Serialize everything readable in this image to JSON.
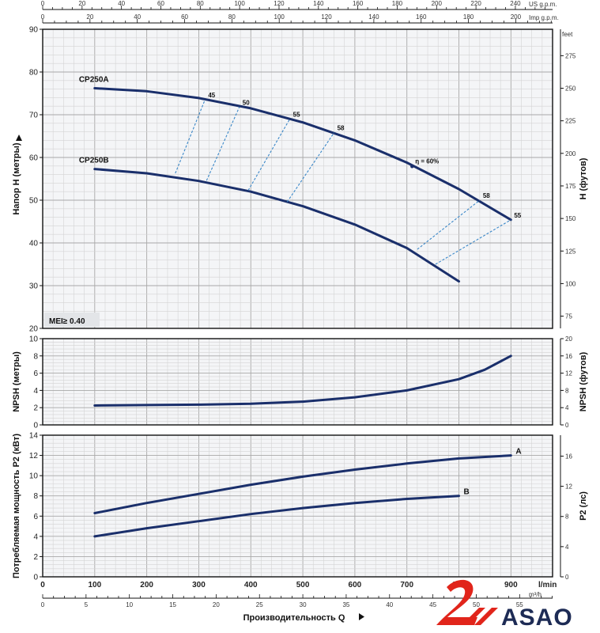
{
  "logo": {
    "text": "ASAO",
    "mark_color": "#e1251b",
    "text_color": "#1d2b55"
  },
  "colors": {
    "curve": "#1a2f6b",
    "efficiency": "#3a87c8",
    "grid_minor": "#d4d4d4",
    "grid_major": "#a8a8a8",
    "panel_bg": "#f4f5f7",
    "axis": "#111111"
  },
  "chart_data": {
    "type": "line",
    "x_axis": {
      "label": "Производительность Q",
      "unit": "l/min",
      "ticks": [
        0,
        100,
        200,
        300,
        400,
        500,
        600,
        700,
        800,
        900
      ],
      "xlim": [
        0,
        980
      ]
    },
    "secondary_x_axes": [
      {
        "unit": "US g.p.m.",
        "position": "top",
        "ticks": [
          0,
          20,
          40,
          60,
          80,
          100,
          120,
          140,
          160,
          180,
          200,
          220,
          240
        ]
      },
      {
        "unit": "Imp g.p.m.",
        "position": "top",
        "ticks": [
          0,
          20,
          40,
          60,
          80,
          100,
          120,
          140,
          160,
          180,
          200
        ]
      },
      {
        "unit": "m³/h",
        "position": "bottom",
        "ticks": [
          0,
          5,
          10,
          15,
          20,
          25,
          30,
          35,
          40,
          45,
          50,
          55
        ]
      }
    ],
    "panels": [
      {
        "id": "head",
        "ylabel": "Напор H (метры)",
        "y2label": "H (футов)",
        "y2unit": "feet",
        "ylim": [
          20,
          90
        ],
        "yticks": [
          20,
          30,
          40,
          50,
          60,
          70,
          80,
          90
        ],
        "y2ticks": [
          75,
          100,
          125,
          150,
          175,
          200,
          225,
          250,
          275
        ],
        "annotation": "MEI≥ 0.40",
        "series": [
          {
            "name": "CP250A",
            "x": [
              100,
              200,
              300,
              400,
              500,
              600,
              700,
              800,
              900
            ],
            "values": [
              76.2,
              75.5,
              73.9,
              71.5,
              68.2,
              64.0,
              58.8,
              52.6,
              45.4
            ]
          },
          {
            "name": "CP250B",
            "x": [
              100,
              200,
              300,
              400,
              500,
              600,
              700,
              800
            ],
            "values": [
              57.3,
              56.3,
              54.5,
              52.0,
              48.6,
              44.3,
              38.8,
              31.0
            ]
          }
        ],
        "efficiency": {
          "label_prefix": "η = ",
          "lines": [
            {
              "label": "45",
              "points": [
                [
                  255,
                  56.3
                ],
                [
                  312,
                  73.5
                ]
              ]
            },
            {
              "label": "50",
              "points": [
                [
                  315,
                  54.6
                ],
                [
                  378,
                  71.8
                ]
              ]
            },
            {
              "label": "55",
              "points": [
                [
                  395,
                  52.3
                ],
                [
                  475,
                  69.0
                ]
              ]
            },
            {
              "label": "58",
              "points": [
                [
                  470,
                  49.6
                ],
                [
                  560,
                  65.8
                ]
              ]
            },
            {
              "label": "60%",
              "points": [
                [
                  710,
                  57.9
                ]
              ]
            },
            {
              "label": "58",
              "points": [
                [
                  720,
                  38.5
                ],
                [
                  840,
                  50.0
                ]
              ]
            },
            {
              "label": "55",
              "points": [
                [
                  755,
                  35.0
                ],
                [
                  900,
                  45.4
                ]
              ]
            }
          ]
        }
      },
      {
        "id": "npsh",
        "ylabel": "NPSH (метры)",
        "y2label": "NPSH (футов)",
        "ylim": [
          0,
          10
        ],
        "yticks": [
          0,
          2,
          4,
          6,
          8,
          10
        ],
        "y2ticks": [
          0,
          4,
          8,
          12,
          16,
          20
        ],
        "series": [
          {
            "name": "NPSH",
            "x": [
              100,
              200,
              300,
              400,
              500,
              600,
              700,
              800,
              850,
              900
            ],
            "values": [
              2.25,
              2.3,
              2.35,
              2.45,
              2.7,
              3.2,
              4.0,
              5.3,
              6.4,
              8.0
            ]
          }
        ]
      },
      {
        "id": "power",
        "ylabel": "Потребляемая мощность P2 (кВт)",
        "y2label": "P2 (лс)",
        "ylim": [
          0,
          14
        ],
        "yticks": [
          0,
          2,
          4,
          6,
          8,
          10,
          12,
          14
        ],
        "y2ticks": [
          0,
          4,
          8,
          12,
          16
        ],
        "series": [
          {
            "name": "A",
            "x": [
              100,
              200,
              300,
              400,
              500,
              600,
              700,
              800,
              900
            ],
            "values": [
              6.3,
              7.3,
              8.2,
              9.1,
              9.9,
              10.6,
              11.2,
              11.7,
              12.0
            ]
          },
          {
            "name": "B",
            "x": [
              100,
              200,
              300,
              400,
              500,
              600,
              700,
              800
            ],
            "values": [
              4.0,
              4.8,
              5.5,
              6.2,
              6.8,
              7.3,
              7.7,
              8.0
            ]
          }
        ]
      }
    ]
  }
}
